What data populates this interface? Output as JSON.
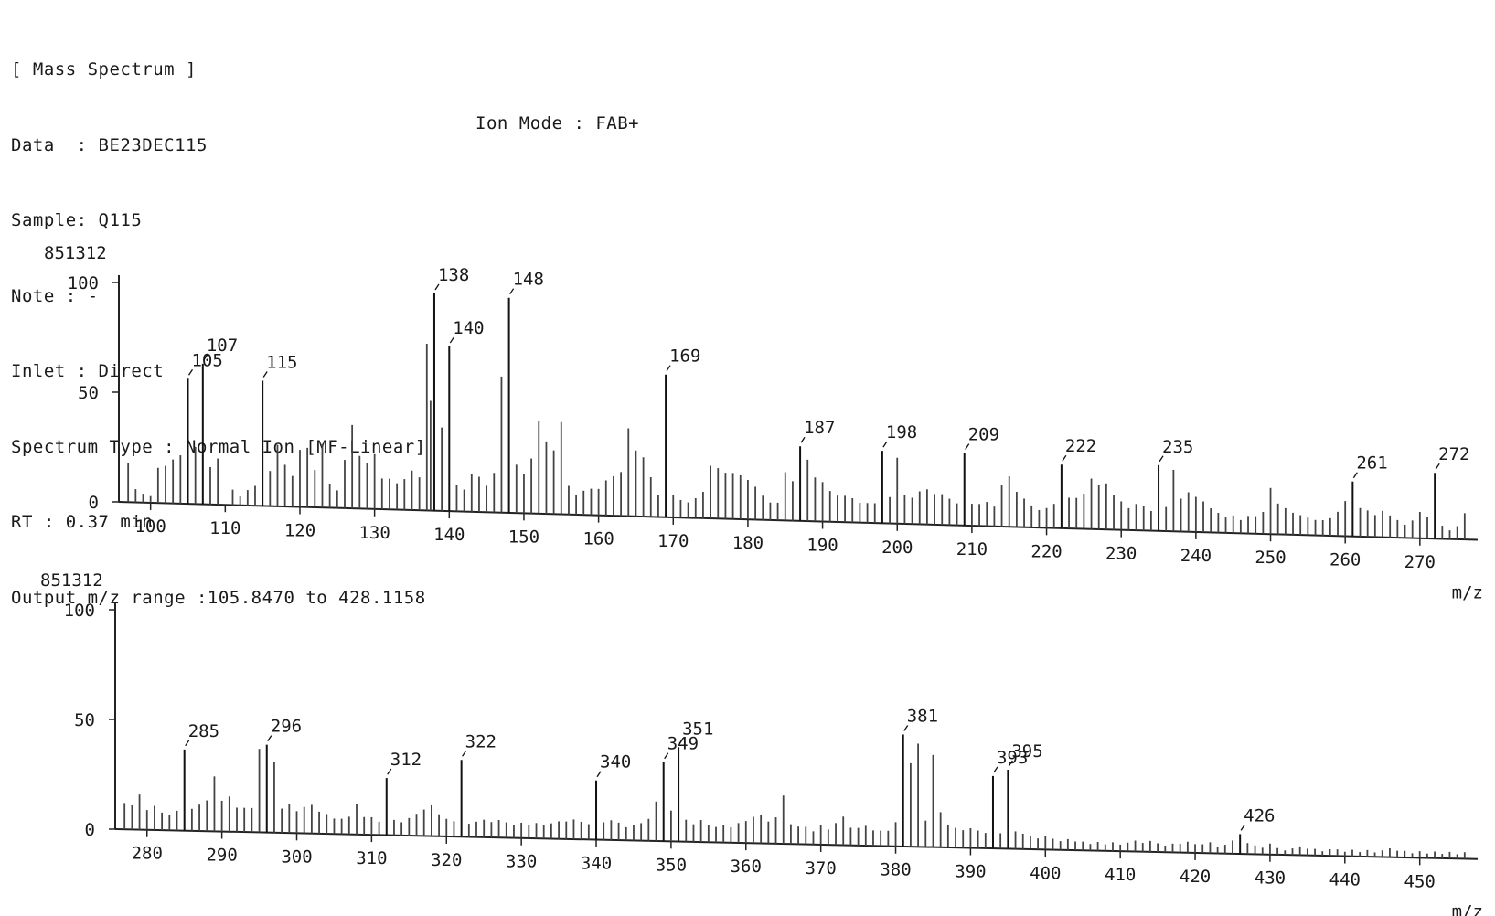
{
  "header": {
    "lines": [
      "[ Mass Spectrum ]",
      "Data  : BE23DEC115",
      "Sample: Q115",
      "Note : -",
      "Inlet : Direct",
      "Spectrum Type : Normal Ion [MF-Linear]",
      "RT : 0.37 min",
      "Output m/z range :105.8470 to 428.1158"
    ],
    "ion_mode": "Ion Mode : FAB+"
  },
  "chart_data": [
    {
      "type": "bar",
      "base_intensity_label": "851312",
      "xlabel": "m/z",
      "xlim": [
        96,
        277
      ],
      "ylim": [
        0,
        100
      ],
      "y_ticks": [
        "0",
        "50",
        "100"
      ],
      "x_ticks": [
        100,
        110,
        120,
        130,
        140,
        150,
        160,
        170,
        180,
        190,
        200,
        210,
        220,
        230,
        240,
        250,
        260,
        270
      ],
      "peaks": [
        {
          "mz": 105,
          "rel": 57,
          "label": "105"
        },
        {
          "mz": 107,
          "rel": 64,
          "label": "107"
        },
        {
          "mz": 115,
          "rel": 57,
          "label": "115"
        },
        {
          "mz": 138,
          "rel": 99,
          "label": "138"
        },
        {
          "mz": 140,
          "rel": 75,
          "label": "140"
        },
        {
          "mz": 148,
          "rel": 98,
          "label": "148"
        },
        {
          "mz": 169,
          "rel": 65,
          "label": "169"
        },
        {
          "mz": 187,
          "rel": 34,
          "label": "187"
        },
        {
          "mz": 198,
          "rel": 33,
          "label": "198"
        },
        {
          "mz": 209,
          "rel": 33,
          "label": "209"
        },
        {
          "mz": 222,
          "rel": 29,
          "label": "222"
        },
        {
          "mz": 235,
          "rel": 30,
          "label": "235"
        },
        {
          "mz": 261,
          "rel": 25,
          "label": "261"
        },
        {
          "mz": 272,
          "rel": 30,
          "label": "272"
        }
      ],
      "minor_peaks": [
        [
          97,
          18
        ],
        [
          98,
          6
        ],
        [
          99,
          4
        ],
        [
          100,
          3
        ],
        [
          101,
          16
        ],
        [
          102,
          17
        ],
        [
          103,
          20
        ],
        [
          104,
          22
        ],
        [
          106,
          26
        ],
        [
          108,
          17
        ],
        [
          109,
          21
        ],
        [
          111,
          7
        ],
        [
          112,
          4
        ],
        [
          113,
          7
        ],
        [
          114,
          9
        ],
        [
          116,
          16
        ],
        [
          117,
          28
        ],
        [
          118,
          19
        ],
        [
          119,
          14
        ],
        [
          120,
          26
        ],
        [
          121,
          27
        ],
        [
          122,
          17
        ],
        [
          123,
          29
        ],
        [
          124,
          11
        ],
        [
          125,
          8
        ],
        [
          126,
          22
        ],
        [
          127,
          38
        ],
        [
          128,
          24
        ],
        [
          129,
          21
        ],
        [
          130,
          25
        ],
        [
          131,
          14
        ],
        [
          132,
          14
        ],
        [
          133,
          12
        ],
        [
          134,
          14
        ],
        [
          135,
          18
        ],
        [
          136,
          15
        ],
        [
          137,
          76
        ],
        [
          137.5,
          50
        ],
        [
          139,
          38
        ],
        [
          141,
          12
        ],
        [
          142,
          10
        ],
        [
          143,
          17
        ],
        [
          144,
          16
        ],
        [
          145,
          12
        ],
        [
          146,
          18
        ],
        [
          147,
          62
        ],
        [
          149,
          22
        ],
        [
          150,
          18
        ],
        [
          151,
          25
        ],
        [
          152,
          42
        ],
        [
          153,
          33
        ],
        [
          154,
          29
        ],
        [
          155,
          42
        ],
        [
          156,
          13
        ],
        [
          157,
          9
        ],
        [
          158,
          11
        ],
        [
          159,
          12
        ],
        [
          160,
          12
        ],
        [
          161,
          16
        ],
        [
          162,
          18
        ],
        [
          163,
          20
        ],
        [
          164,
          40
        ],
        [
          165,
          30
        ],
        [
          166,
          27
        ],
        [
          167,
          18
        ],
        [
          168,
          10
        ],
        [
          170,
          10
        ],
        [
          171,
          8
        ],
        [
          172,
          7
        ],
        [
          173,
          9
        ],
        [
          174,
          12
        ],
        [
          175,
          24
        ],
        [
          176,
          23
        ],
        [
          177,
          21
        ],
        [
          178,
          21
        ],
        [
          179,
          20
        ],
        [
          180,
          18
        ],
        [
          181,
          15
        ],
        [
          182,
          11
        ],
        [
          183,
          8
        ],
        [
          184,
          8
        ],
        [
          185,
          22
        ],
        [
          186,
          18
        ],
        [
          188,
          28
        ],
        [
          189,
          20
        ],
        [
          190,
          18
        ],
        [
          191,
          14
        ],
        [
          192,
          12
        ],
        [
          193,
          12
        ],
        [
          194,
          11
        ],
        [
          195,
          9
        ],
        [
          196,
          9
        ],
        [
          197,
          9
        ],
        [
          199,
          12
        ],
        [
          200,
          30
        ],
        [
          201,
          13
        ],
        [
          202,
          12
        ],
        [
          203,
          15
        ],
        [
          204,
          16
        ],
        [
          205,
          14
        ],
        [
          206,
          14
        ],
        [
          207,
          12
        ],
        [
          208,
          10
        ],
        [
          210,
          10
        ],
        [
          211,
          10
        ],
        [
          212,
          11
        ],
        [
          213,
          9
        ],
        [
          214,
          19
        ],
        [
          215,
          23
        ],
        [
          216,
          16
        ],
        [
          217,
          13
        ],
        [
          218,
          10
        ],
        [
          219,
          8
        ],
        [
          220,
          9
        ],
        [
          221,
          11
        ],
        [
          223,
          14
        ],
        [
          224,
          14
        ],
        [
          225,
          16
        ],
        [
          226,
          23
        ],
        [
          227,
          20
        ],
        [
          228,
          21
        ],
        [
          229,
          16
        ],
        [
          230,
          13
        ],
        [
          231,
          10
        ],
        [
          232,
          12
        ],
        [
          233,
          11
        ],
        [
          234,
          9
        ],
        [
          236,
          11
        ],
        [
          237,
          28
        ],
        [
          238,
          15
        ],
        [
          239,
          18
        ],
        [
          240,
          16
        ],
        [
          241,
          14
        ],
        [
          242,
          11
        ],
        [
          243,
          9
        ],
        [
          244,
          7
        ],
        [
          245,
          8
        ],
        [
          246,
          6
        ],
        [
          247,
          8
        ],
        [
          248,
          8
        ],
        [
          249,
          10
        ],
        [
          250,
          21
        ],
        [
          251,
          14
        ],
        [
          252,
          12
        ],
        [
          253,
          10
        ],
        [
          254,
          9
        ],
        [
          255,
          8
        ],
        [
          256,
          7
        ],
        [
          257,
          7
        ],
        [
          258,
          8
        ],
        [
          259,
          11
        ],
        [
          260,
          16
        ],
        [
          262,
          13
        ],
        [
          263,
          12
        ],
        [
          264,
          10
        ],
        [
          265,
          12
        ],
        [
          266,
          10
        ],
        [
          267,
          8
        ],
        [
          268,
          6
        ],
        [
          269,
          8
        ],
        [
          270,
          12
        ],
        [
          271,
          10
        ],
        [
          273,
          6
        ],
        [
          274,
          4
        ],
        [
          275,
          6
        ],
        [
          276,
          12
        ]
      ]
    },
    {
      "type": "bar",
      "base_intensity_label": "851312",
      "xlabel": "m/z",
      "xlim": [
        276,
        457
      ],
      "ylim": [
        0,
        100
      ],
      "y_ticks": [
        "0",
        "50",
        "100"
      ],
      "x_ticks": [
        280,
        290,
        300,
        310,
        320,
        330,
        340,
        350,
        360,
        370,
        380,
        390,
        400,
        410,
        420,
        430,
        440,
        450
      ],
      "peaks": [
        {
          "mz": 285,
          "rel": 37,
          "label": "285"
        },
        {
          "mz": 296,
          "rel": 40,
          "label": "296"
        },
        {
          "mz": 312,
          "rel": 26,
          "label": "312"
        },
        {
          "mz": 322,
          "rel": 35,
          "label": "322"
        },
        {
          "mz": 340,
          "rel": 27,
          "label": "340"
        },
        {
          "mz": 349,
          "rel": 36,
          "label": "349"
        },
        {
          "mz": 351,
          "rel": 43,
          "label": "351"
        },
        {
          "mz": 381,
          "rel": 51,
          "label": "381"
        },
        {
          "mz": 393,
          "rel": 33,
          "label": "393"
        },
        {
          "mz": 395,
          "rel": 36,
          "label": "395"
        },
        {
          "mz": 426,
          "rel": 9,
          "label": "426"
        }
      ],
      "minor_peaks": [
        [
          277,
          12
        ],
        [
          278,
          11
        ],
        [
          279,
          16
        ],
        [
          280,
          9
        ],
        [
          281,
          11
        ],
        [
          282,
          8
        ],
        [
          283,
          7
        ],
        [
          284,
          9
        ],
        [
          286,
          10
        ],
        [
          287,
          12
        ],
        [
          288,
          14
        ],
        [
          289,
          25
        ],
        [
          290,
          14
        ],
        [
          291,
          16
        ],
        [
          292,
          11
        ],
        [
          293,
          11
        ],
        [
          294,
          11
        ],
        [
          295,
          38
        ],
        [
          297,
          32
        ],
        [
          298,
          11
        ],
        [
          299,
          13
        ],
        [
          300,
          10
        ],
        [
          301,
          12
        ],
        [
          302,
          13
        ],
        [
          303,
          10
        ],
        [
          304,
          9
        ],
        [
          305,
          7
        ],
        [
          306,
          7
        ],
        [
          307,
          8
        ],
        [
          308,
          14
        ],
        [
          309,
          8
        ],
        [
          310,
          8
        ],
        [
          311,
          6
        ],
        [
          313,
          7
        ],
        [
          314,
          6
        ],
        [
          315,
          8
        ],
        [
          316,
          10
        ],
        [
          317,
          12
        ],
        [
          318,
          14
        ],
        [
          319,
          10
        ],
        [
          320,
          8
        ],
        [
          321,
          7
        ],
        [
          323,
          6
        ],
        [
          324,
          7
        ],
        [
          325,
          8
        ],
        [
          326,
          7
        ],
        [
          327,
          8
        ],
        [
          328,
          7
        ],
        [
          329,
          6
        ],
        [
          330,
          7
        ],
        [
          331,
          6
        ],
        [
          332,
          7
        ],
        [
          333,
          6
        ],
        [
          334,
          7
        ],
        [
          335,
          8
        ],
        [
          336,
          8
        ],
        [
          337,
          9
        ],
        [
          338,
          8
        ],
        [
          339,
          7
        ],
        [
          341,
          8
        ],
        [
          342,
          9
        ],
        [
          343,
          8
        ],
        [
          344,
          6
        ],
        [
          345,
          7
        ],
        [
          346,
          8
        ],
        [
          347,
          10
        ],
        [
          348,
          18
        ],
        [
          350,
          14
        ],
        [
          352,
          10
        ],
        [
          353,
          8
        ],
        [
          354,
          10
        ],
        [
          355,
          8
        ],
        [
          356,
          7
        ],
        [
          357,
          8
        ],
        [
          358,
          7
        ],
        [
          359,
          9
        ],
        [
          360,
          10
        ],
        [
          361,
          12
        ],
        [
          362,
          13
        ],
        [
          363,
          10
        ],
        [
          364,
          12
        ],
        [
          365,
          22
        ],
        [
          366,
          9
        ],
        [
          367,
          8
        ],
        [
          368,
          8
        ],
        [
          369,
          6
        ],
        [
          370,
          9
        ],
        [
          371,
          7
        ],
        [
          372,
          10
        ],
        [
          373,
          13
        ],
        [
          374,
          8
        ],
        [
          375,
          8
        ],
        [
          376,
          9
        ],
        [
          377,
          7
        ],
        [
          378,
          7
        ],
        [
          379,
          7
        ],
        [
          380,
          11
        ],
        [
          382,
          38
        ],
        [
          383,
          47
        ],
        [
          384,
          12
        ],
        [
          385,
          42
        ],
        [
          386,
          16
        ],
        [
          387,
          10
        ],
        [
          388,
          9
        ],
        [
          389,
          8
        ],
        [
          390,
          9
        ],
        [
          391,
          8
        ],
        [
          392,
          7
        ],
        [
          394,
          7
        ],
        [
          396,
          8
        ],
        [
          397,
          7
        ],
        [
          398,
          6
        ],
        [
          399,
          5
        ],
        [
          400,
          6
        ],
        [
          401,
          5
        ],
        [
          402,
          4
        ],
        [
          403,
          5
        ],
        [
          404,
          4
        ],
        [
          405,
          4
        ],
        [
          406,
          3
        ],
        [
          407,
          4
        ],
        [
          408,
          3
        ],
        [
          409,
          4
        ],
        [
          410,
          3
        ],
        [
          411,
          4
        ],
        [
          412,
          5
        ],
        [
          413,
          4
        ],
        [
          414,
          5
        ],
        [
          415,
          4
        ],
        [
          416,
          3
        ],
        [
          417,
          4
        ],
        [
          418,
          4
        ],
        [
          419,
          5
        ],
        [
          420,
          4
        ],
        [
          421,
          4
        ],
        [
          422,
          5
        ],
        [
          423,
          3
        ],
        [
          424,
          4
        ],
        [
          425,
          6
        ],
        [
          427,
          5
        ],
        [
          428,
          4
        ],
        [
          429,
          3
        ],
        [
          430,
          5
        ],
        [
          431,
          3
        ],
        [
          432,
          2
        ],
        [
          433,
          3
        ],
        [
          434,
          4
        ],
        [
          435,
          3
        ],
        [
          436,
          3
        ],
        [
          437,
          2
        ],
        [
          438,
          3
        ],
        [
          439,
          3
        ],
        [
          440,
          2
        ],
        [
          441,
          3
        ],
        [
          442,
          2
        ],
        [
          443,
          3
        ],
        [
          444,
          2
        ],
        [
          445,
          3
        ],
        [
          446,
          4
        ],
        [
          447,
          3
        ],
        [
          448,
          3
        ],
        [
          449,
          2
        ],
        [
          450,
          3
        ],
        [
          451,
          2
        ],
        [
          452,
          3
        ],
        [
          453,
          2
        ],
        [
          454,
          3
        ],
        [
          455,
          2
        ],
        [
          456,
          3
        ]
      ]
    }
  ]
}
